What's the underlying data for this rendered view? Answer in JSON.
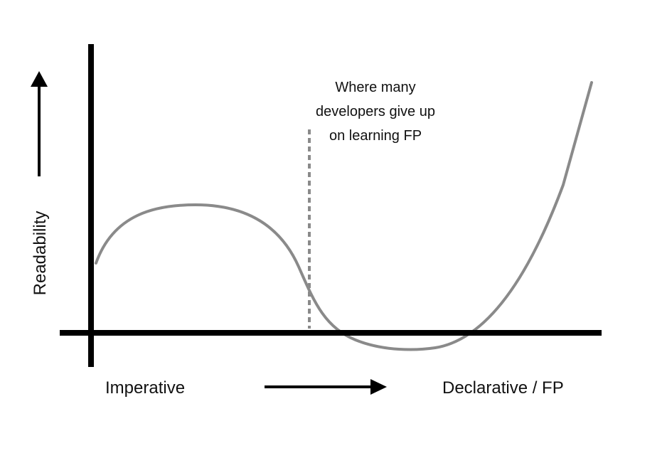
{
  "chart_data": {
    "type": "line",
    "title": "",
    "xlabel": "",
    "ylabel": "Readability",
    "x_start_label": "Imperative",
    "x_end_label": "Declarative / FP",
    "annotation": {
      "lines": [
        "Where many",
        "developers give up",
        "on learning FP"
      ]
    },
    "curve_style": "smooth",
    "grid": false,
    "legend": "none",
    "colors": {
      "axes": "#000000",
      "curve": "#8a8a8a",
      "annotation_line": "#8a8a8a",
      "text": "#111111"
    }
  }
}
